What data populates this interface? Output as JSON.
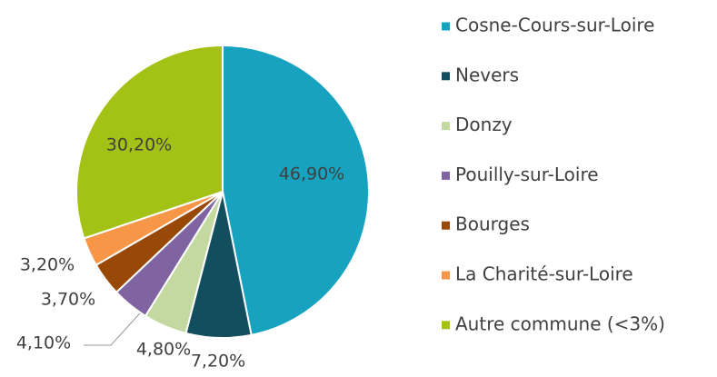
{
  "chart_data": {
    "type": "pie",
    "categories": [
      "Cosne-Cours-sur-Loire",
      "Nevers",
      "Donzy",
      "Pouilly-sur-Loire",
      "Bourges",
      "La Charité-sur-Loire",
      "Autre commune (<3%)"
    ],
    "values": [
      46.9,
      7.2,
      4.8,
      4.1,
      3.7,
      3.2,
      30.2
    ],
    "value_labels": [
      "46,90%",
      "7,20%",
      "4,80%",
      "4,10%",
      "3,70%",
      "3,20%",
      "30,20%"
    ],
    "colors": [
      "#17a3bf",
      "#134e5f",
      "#c4d9a0",
      "#8064a2",
      "#984807",
      "#f79646",
      "#a3c215"
    ],
    "legend": "right"
  }
}
